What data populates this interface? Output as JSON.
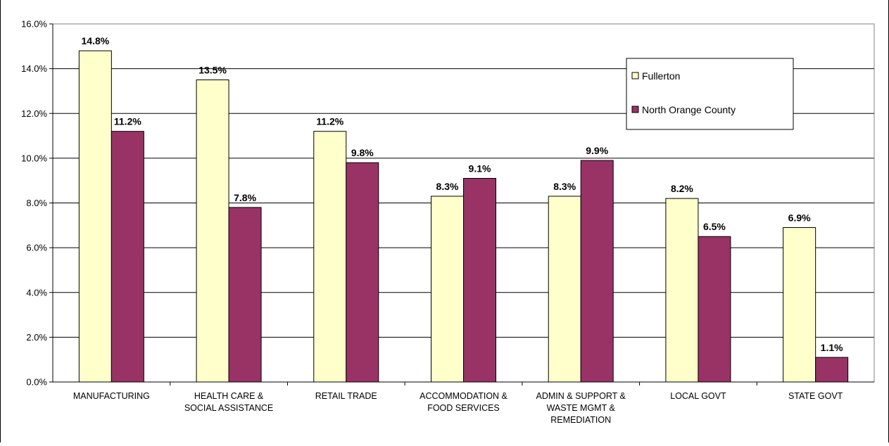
{
  "chart_data": {
    "type": "bar",
    "title": "",
    "xlabel": "",
    "ylabel": "",
    "ylim": [
      0,
      16
    ],
    "yticks": [
      "0.0%",
      "2.0%",
      "4.0%",
      "6.0%",
      "8.0%",
      "10.0%",
      "12.0%",
      "14.0%",
      "16.0%"
    ],
    "grid": true,
    "legend_position": "top-right",
    "categories": [
      [
        "MANUFACTURING"
      ],
      [
        "HEALTH CARE &",
        "SOCIAL ASSISTANCE"
      ],
      [
        "RETAIL TRADE"
      ],
      [
        "ACCOMMODATION &",
        "FOOD SERVICES"
      ],
      [
        "ADMIN & SUPPORT &",
        "WASTE MGMT &",
        "REMEDIATION"
      ],
      [
        "LOCAL GOVT"
      ],
      [
        "STATE GOVT"
      ]
    ],
    "series": [
      {
        "name": "Fullerton",
        "color": "#FFFFCC",
        "values": [
          14.8,
          13.5,
          11.2,
          8.3,
          8.3,
          8.2,
          6.9
        ],
        "labels": [
          "14.8%",
          "13.5%",
          "11.2%",
          "8.3%",
          "8.3%",
          "8.2%",
          "6.9%"
        ]
      },
      {
        "name": "North Orange County",
        "color": "#993366",
        "values": [
          11.2,
          7.8,
          9.8,
          9.1,
          9.9,
          6.5,
          1.1
        ],
        "labels": [
          "11.2%",
          "7.8%",
          "9.8%",
          "9.1%",
          "9.9%",
          "6.5%",
          "1.1%"
        ]
      }
    ]
  }
}
